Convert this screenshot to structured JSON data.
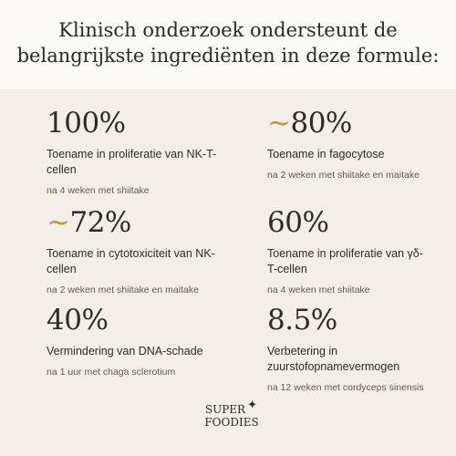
{
  "header": {
    "title_line1": "Klinisch onderzoek ondersteunt de",
    "title_line2": "belangrijkste ingrediënten in deze formule:"
  },
  "stats": [
    {
      "tilde": "",
      "value": "100%",
      "description": "Toename in proliferatie van NK-T-cellen",
      "note": "na 4 weken met shiitake"
    },
    {
      "tilde": "~",
      "value": "80%",
      "description": "Toename in fagocytose",
      "note": "na 2 weken met shiitake en maitake"
    },
    {
      "tilde": "~",
      "value": "72%",
      "description": "Toename in cytotoxiciteit van NK-cellen",
      "note": "na 2 weken met shiitake en maitake"
    },
    {
      "tilde": "",
      "value": "60%",
      "description": "Toename in proliferatie van γδ-T-cellen",
      "note": "na 4 weken met shiitake"
    },
    {
      "tilde": "",
      "value": "40%",
      "description": "Vermindering van DNA-schade",
      "note": "na 1 uur met chaga sclerotium"
    },
    {
      "tilde": "",
      "value": "8.5%",
      "description": "Verbetering in zuurstofopnamevermogen",
      "note": "na 12 weken met cordyceps sinensis"
    }
  ],
  "logo": {
    "line1": "SUPER",
    "line2": "FOODIES",
    "star_glyph": "✦",
    "name": "superfoodies-logo"
  },
  "colors": {
    "background": "#f3efe8",
    "header_background": "#fbfaf6",
    "accent_tilde": "#c9923d",
    "text": "#2b2a26"
  }
}
